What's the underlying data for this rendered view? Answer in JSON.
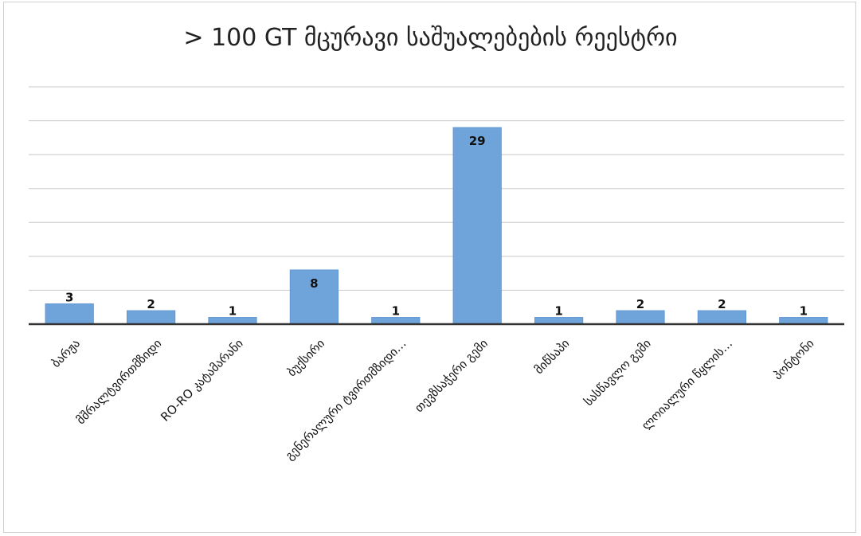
{
  "chart_data": {
    "type": "bar",
    "title": "> 100 GT მცურავი საშუალებების რეესტრი",
    "categories": [
      "ბარჟა",
      "მშრალტვირთმზიდი",
      "RO-RO კატამარანი",
      "ბუქსირი",
      "გენერალური ტვირთმზიდი…",
      "თევზსაჭერი გემი",
      "მიწსაპი",
      "სასწავლო გემი",
      "ლოიალური წყლის…",
      "პონტონი"
    ],
    "values": [
      3,
      2,
      1,
      8,
      1,
      29,
      1,
      2,
      2,
      1
    ],
    "ylim": [
      0,
      35
    ],
    "grid": true,
    "legend": "none",
    "colors": {
      "bar": "#6fa4db",
      "bar_edge": "#5b93cf",
      "grid": "#c8c8c8",
      "axis": "#333333"
    }
  }
}
